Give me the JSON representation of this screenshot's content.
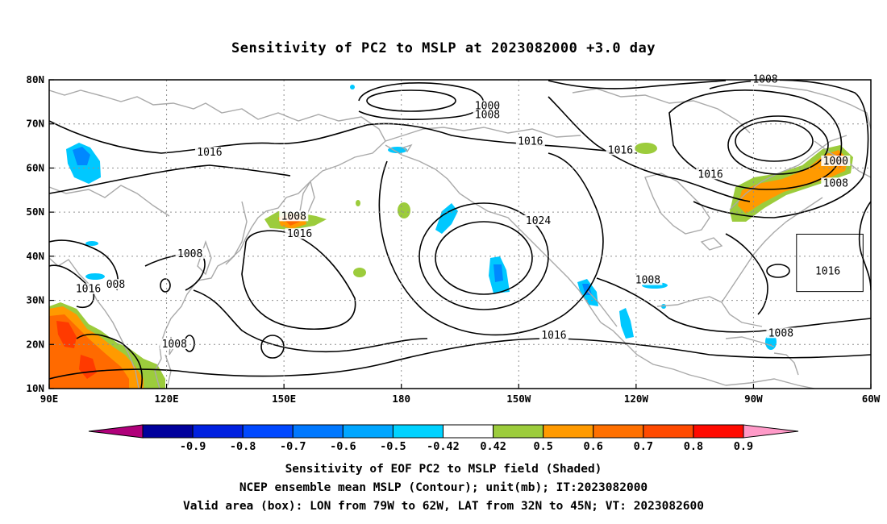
{
  "title": "Sensitivity of PC2 to MSLP at 2023082000 +3.0 day",
  "map": {
    "lat_ticks": [
      "80N",
      "70N",
      "60N",
      "50N",
      "40N",
      "30N",
      "20N",
      "10N"
    ],
    "lon_ticks": [
      "90E",
      "120E",
      "150E",
      "180",
      "150W",
      "120W",
      "90W",
      "60W"
    ],
    "contour_labels": [
      {
        "text": "1000",
        "lon": -158,
        "lat": 73.5
      },
      {
        "text": "1008",
        "lon": -158,
        "lat": 71.5
      },
      {
        "text": "1016",
        "lon": 131,
        "lat": 63
      },
      {
        "text": "1016",
        "lon": -147,
        "lat": 65.5
      },
      {
        "text": "1016",
        "lon": -124,
        "lat": 63.5
      },
      {
        "text": "1016",
        "lon": -101,
        "lat": 58
      },
      {
        "text": "1008",
        "lon": -87,
        "lat": 79.5
      },
      {
        "text": "1000",
        "lon": -69,
        "lat": 61
      },
      {
        "text": "1008",
        "lon": -69,
        "lat": 56
      },
      {
        "text": "1008",
        "lon": 152.5,
        "lat": 48.5
      },
      {
        "text": "1016",
        "lon": 154,
        "lat": 44.5
      },
      {
        "text": "1024",
        "lon": -145,
        "lat": 47.5
      },
      {
        "text": "1008",
        "lon": 126,
        "lat": 40
      },
      {
        "text": "1016",
        "lon": 100,
        "lat": 32
      },
      {
        "text": "008",
        "lon": 107,
        "lat": 33
      },
      {
        "text": "1008",
        "lon": -117,
        "lat": 34
      },
      {
        "text": "1016",
        "lon": -71,
        "lat": 36
      },
      {
        "text": "1016",
        "lon": -141,
        "lat": 21.5
      },
      {
        "text": "1008",
        "lon": -83,
        "lat": 22
      },
      {
        "text": "1008",
        "lon": 122,
        "lat": 19.5
      }
    ],
    "valid_box": {
      "lon_min": -79,
      "lon_max": -62,
      "lat_min": 32,
      "lat_max": 45
    },
    "colors": {
      "contour": "#000000",
      "coast": "#a9a9a9",
      "grid": "#909090",
      "green": "#9ccc3c",
      "orange": "#ff9a00",
      "redorange": "#ff6a00",
      "red": "#ff3a00",
      "cyan": "#00c8ff",
      "blue": "#0088ff"
    }
  },
  "colorbar": {
    "labels": [
      "-0.9",
      "-0.8",
      "-0.7",
      "-0.6",
      "-0.5",
      "-0.42",
      "0.42",
      "0.5",
      "0.6",
      "0.7",
      "0.8",
      "0.9"
    ],
    "colors": [
      "#00009c",
      "#0020e0",
      "#0048ff",
      "#0078ff",
      "#00a6ff",
      "#00d2ff",
      "#ffffff",
      "#9ccc3c",
      "#ff9a00",
      "#ff7000",
      "#ff4a00",
      "#ff0a00"
    ],
    "left_end_color": "#b0007a",
    "right_end_color": "#ff9ac8"
  },
  "caption": {
    "line1": "Sensitivity of EOF PC2 to MSLP field (Shaded)",
    "line2": "NCEP ensemble mean MSLP (Contour); unit(mb); IT:2023082000",
    "line3": "Valid area (box): LON from 79W to 62W, LAT from 32N to 45N; VT: 2023082600"
  }
}
